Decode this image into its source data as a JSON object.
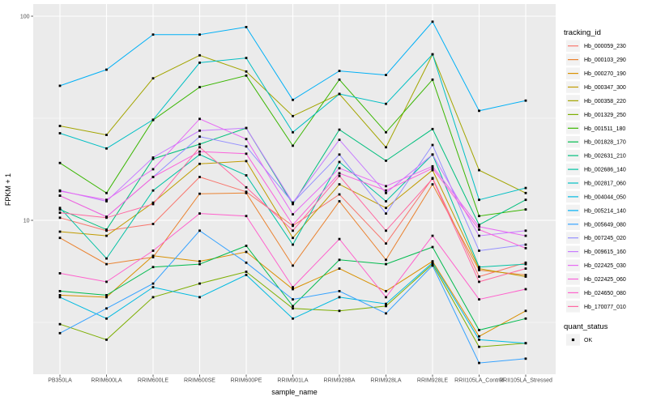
{
  "chart_data": {
    "type": "line",
    "title": "",
    "xlabel": "sample_name",
    "ylabel": "FPKM + 1",
    "y_scale": "log10",
    "ylim": [
      1.8,
      115
    ],
    "y_major_ticks": [
      100,
      10
    ],
    "y_tick_labels": [
      "100",
      "10"
    ],
    "y_minor_gridlines": [
      31.623,
      3.1623
    ],
    "grid": "white major+minor horizontal, white major vertical, on gray panel",
    "legend_position": "right",
    "point_marker": "small black square on every data point (quant_status = OK)",
    "categories": [
      "PB350LA",
      "RRIM600LA",
      "RRIM600LE",
      "RRIM600SE",
      "RRIM600PE",
      "RRIM901LA",
      "RRIM928BA",
      "RRIM928LA",
      "RRIM928LE",
      "RRII105LA_Control",
      "RRII105LA_Stressed"
    ],
    "series": [
      {
        "name": "Hb_000059_230",
        "color": "#F8766D",
        "values": [
          10.3,
          8.9,
          9.6,
          16.3,
          13.8,
          9.4,
          13.4,
          7.7,
          16.1,
          5.3,
          6.2
        ]
      },
      {
        "name": "Hb_000103_290",
        "color": "#EA8331",
        "values": [
          8.2,
          6.1,
          6.6,
          13.5,
          13.6,
          6.0,
          12.4,
          6.4,
          15.0,
          5.7,
          5.4
        ]
      },
      {
        "name": "Hb_000270_190",
        "color": "#D89000",
        "values": [
          4.3,
          4.2,
          6.7,
          6.3,
          7.0,
          4.6,
          5.8,
          4.5,
          6.3,
          2.7,
          3.6
        ]
      },
      {
        "name": "Hb_000347_300",
        "color": "#C09B00",
        "values": [
          8.8,
          8.4,
          12.2,
          18.9,
          19.5,
          8.2,
          15.0,
          11.5,
          17.6,
          5.8,
          5.3
        ]
      },
      {
        "name": "Hb_000358_220",
        "color": "#A3A500",
        "values": [
          29.0,
          26.2,
          49.6,
          64.3,
          53.6,
          32.4,
          41.6,
          22.8,
          65.0,
          17.6,
          13.6
        ]
      },
      {
        "name": "Hb_001329_250",
        "color": "#7CAE00",
        "values": [
          3.1,
          2.6,
          4.2,
          4.9,
          5.6,
          3.7,
          3.6,
          3.8,
          6.1,
          2.4,
          2.5
        ]
      },
      {
        "name": "Hb_001511_180",
        "color": "#39B600",
        "values": [
          19.1,
          13.6,
          31.0,
          44.9,
          51.2,
          23.2,
          48.9,
          27.0,
          48.9,
          10.5,
          11.3
        ]
      },
      {
        "name": "Hb_001828_170",
        "color": "#00BB4E",
        "values": [
          4.5,
          4.3,
          5.9,
          6.1,
          7.5,
          3.8,
          6.4,
          6.1,
          7.4,
          2.9,
          3.3
        ]
      },
      {
        "name": "Hb_002631_210",
        "color": "#00BF7D",
        "values": [
          11.3,
          9.0,
          20.0,
          23.6,
          28.3,
          12.0,
          27.8,
          19.6,
          28.0,
          9.5,
          12.6
        ]
      },
      {
        "name": "Hb_002686_140",
        "color": "#00C1A3",
        "values": [
          11.5,
          6.5,
          14.0,
          21.0,
          16.6,
          7.6,
          19.3,
          12.4,
          21.0,
          5.9,
          6.1
        ]
      },
      {
        "name": "Hb_002817_060",
        "color": "#00BFC4",
        "values": [
          26.7,
          22.5,
          31.1,
          59.2,
          62.4,
          27.0,
          41.6,
          37.2,
          65.0,
          12.6,
          14.4
        ]
      },
      {
        "name": "Hb_004044_050",
        "color": "#00BAE0",
        "values": [
          4.2,
          3.3,
          4.7,
          4.2,
          5.4,
          3.3,
          4.2,
          3.9,
          6.2,
          2.6,
          2.5
        ]
      },
      {
        "name": "Hb_005214_140",
        "color": "#00B0F6",
        "values": [
          45.6,
          54.7,
          81.3,
          81.3,
          88.5,
          38.9,
          53.9,
          51.5,
          94.0,
          34.4,
          38.6
        ]
      },
      {
        "name": "Hb_005649_080",
        "color": "#35A2FF",
        "values": [
          2.8,
          3.7,
          4.9,
          8.9,
          6.2,
          4.1,
          4.5,
          3.5,
          6.0,
          2.0,
          2.1
        ]
      },
      {
        "name": "Hb_007245_020",
        "color": "#9590FF",
        "values": [
          13.2,
          10.4,
          16.3,
          25.7,
          23.0,
          12.2,
          21.0,
          10.8,
          23.4,
          7.1,
          7.6
        ]
      },
      {
        "name": "Hb_009615_160",
        "color": "#C77CFF",
        "values": [
          14.0,
          12.4,
          20.3,
          27.5,
          28.3,
          12.2,
          24.8,
          13.6,
          21.0,
          8.4,
          8.9
        ]
      },
      {
        "name": "Hb_022425_030",
        "color": "#E76BF3",
        "values": [
          13.9,
          12.6,
          17.8,
          31.4,
          25.0,
          10.7,
          18.0,
          14.7,
          18.4,
          9.3,
          8.4
        ]
      },
      {
        "name": "Hb_022425_060",
        "color": "#FA62DB",
        "values": [
          13.2,
          10.4,
          16.3,
          21.7,
          21.2,
          9.5,
          17.0,
          14.0,
          18.0,
          9.0,
          7.3
        ]
      },
      {
        "name": "Hb_024650_080",
        "color": "#FF61CC",
        "values": [
          5.5,
          5.0,
          7.1,
          10.8,
          10.5,
          4.7,
          8.1,
          4.2,
          8.4,
          4.1,
          4.6
        ]
      },
      {
        "name": "Hb_170077_010",
        "color": "#FF68A1",
        "values": [
          10.9,
          10.3,
          12.0,
          22.8,
          14.5,
          8.9,
          16.5,
          8.9,
          16.0,
          5.0,
          5.8
        ]
      }
    ]
  },
  "legend": {
    "tracking_title": "tracking_id",
    "quant_title": "quant_status",
    "quant_items": [
      {
        "label": "OK",
        "marker": "black-square"
      }
    ]
  },
  "colors": {
    "panel_bg": "#EBEBEB",
    "grid": "#FFFFFF",
    "axis_text": "#4D4D4D",
    "tick": "#333333",
    "legend_key_bg": "#F2F2F2",
    "point": "#000000",
    "background": "#FFFFFF"
  }
}
